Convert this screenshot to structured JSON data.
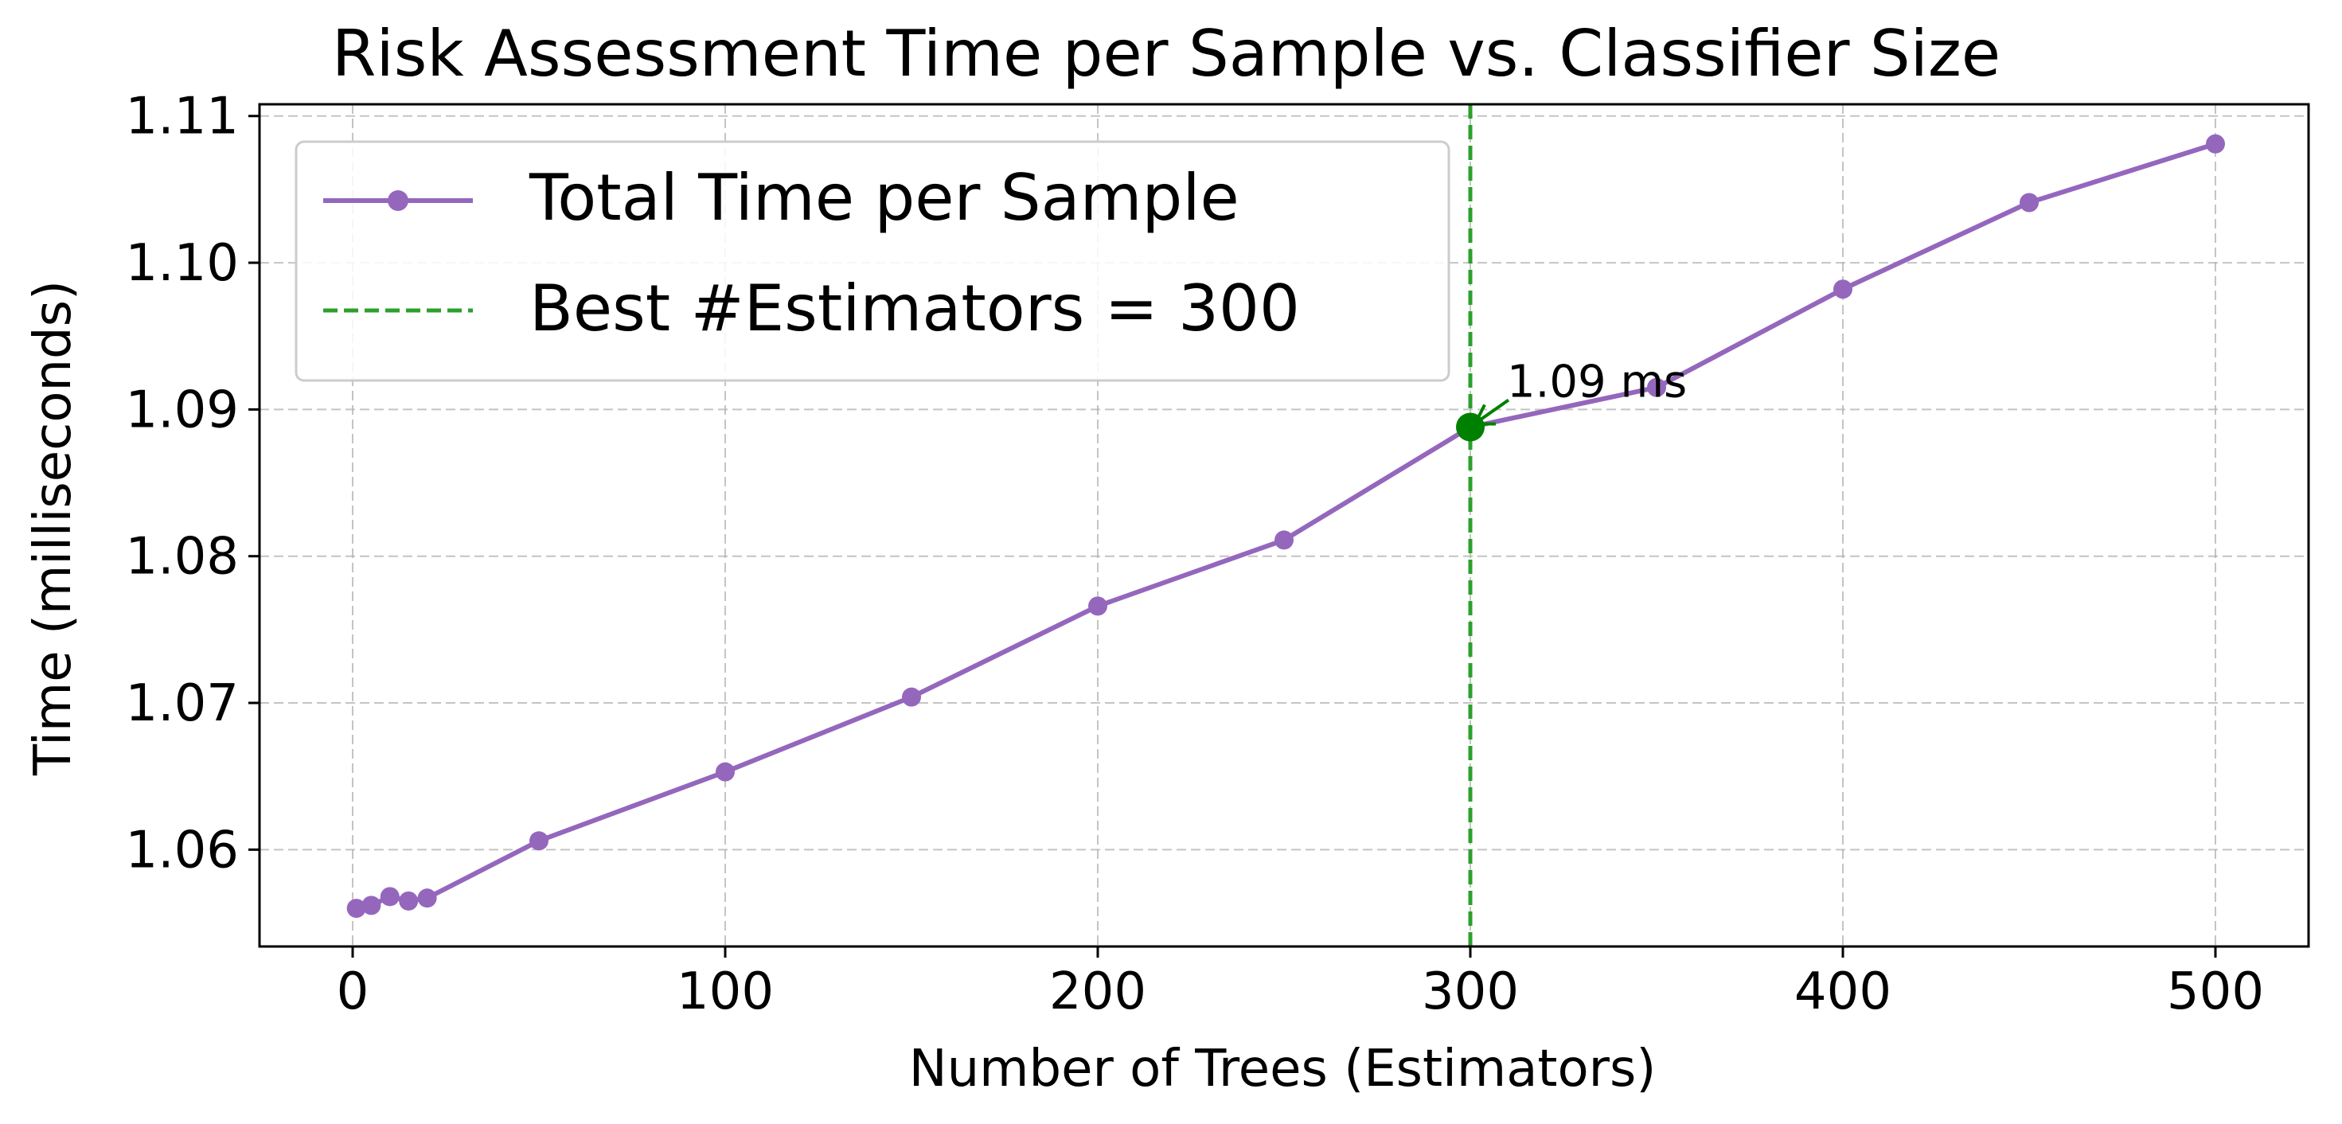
{
  "chart_data": {
    "type": "line",
    "title": "Risk Assessment Time per Sample vs. Classifier Size",
    "xlabel": "Number of Trees (Estimators)",
    "ylabel": "Time (milliseconds)",
    "xlim": [
      -25,
      525
    ],
    "ylim": [
      1.0534,
      1.1108
    ],
    "xticks": [
      0,
      100,
      200,
      300,
      400,
      500
    ],
    "xtick_labels": [
      "0",
      "100",
      "200",
      "300",
      "400",
      "500"
    ],
    "yticks": [
      1.06,
      1.07,
      1.08,
      1.09,
      1.1,
      1.11
    ],
    "ytick_labels": [
      "1.06",
      "1.07",
      "1.08",
      "1.09",
      "1.10",
      "1.11"
    ],
    "grid": true,
    "legend_position": "top-left",
    "series": [
      {
        "name": "Total Time per Sample",
        "color": "#9467bd",
        "marker": "circle",
        "x": [
          1,
          5,
          10,
          15,
          20,
          50,
          100,
          150,
          200,
          250,
          300,
          350,
          400,
          450,
          500
        ],
        "y": [
          1.056,
          1.0562,
          1.0568,
          1.0565,
          1.0567,
          1.0606,
          1.0653,
          1.0704,
          1.0766,
          1.0811,
          1.0888,
          1.0915,
          1.0982,
          1.1041,
          1.1081
        ]
      }
    ],
    "reference_line": {
      "name": "Best #Estimators = 300",
      "x": 300,
      "color": "#2ca02c",
      "style": "dashed"
    },
    "highlight_point": {
      "x": 300,
      "y": 1.0888,
      "color": "#008000",
      "label": "1.09 ms"
    }
  }
}
